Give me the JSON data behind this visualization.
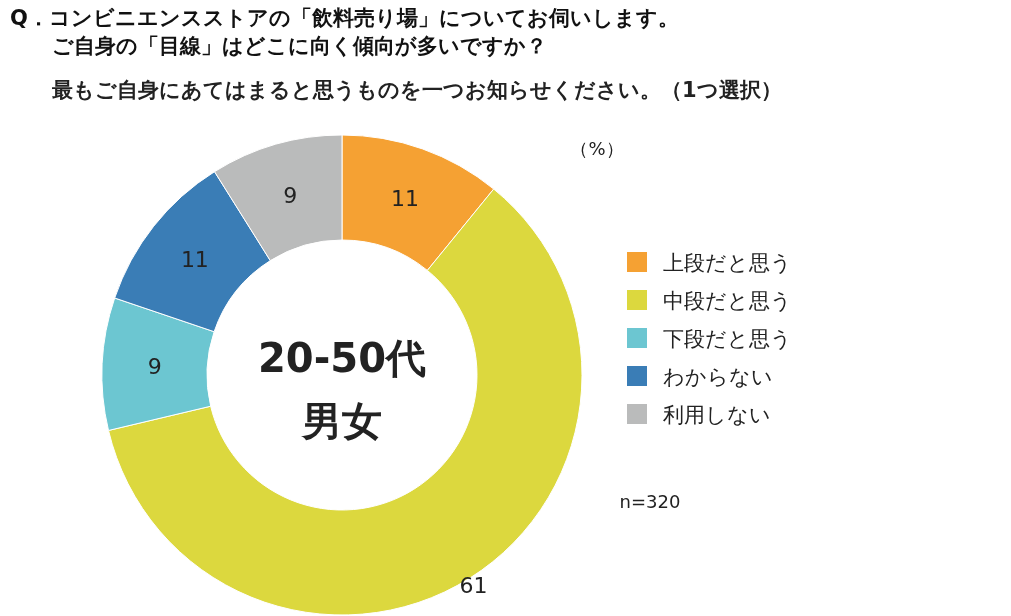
{
  "chart_data": {
    "type": "donut",
    "title": "Q．コンビニエンスストアの「飲料売り場」についてお伺いします。",
    "subtitle": "ご自身の「目線」はどこに向く傾向が多いですか？",
    "categories": [
      "上段だと思う",
      "中段だと思う",
      "下段だと思う",
      "わからない",
      "利用しない"
    ],
    "values": [
      11,
      61,
      9,
      11,
      9
    ],
    "colors": [
      "#f5a133",
      "#dcd83e",
      "#6cc6d1",
      "#3a7db6",
      "#babbbb"
    ],
    "data_labels": true,
    "legend": "right",
    "annotations": [
      "最もご自身にあてはまると思うものを一つお知らせください。（1つ選択）",
      "20-50代",
      "男女",
      "（%）",
      "n=320"
    ]
  }
}
